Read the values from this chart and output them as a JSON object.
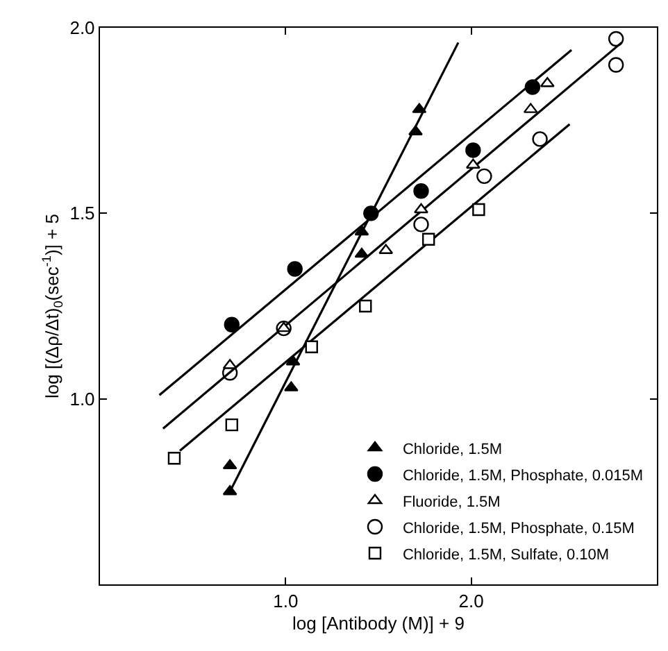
{
  "chart_data": {
    "type": "scatter",
    "xlabel": "log [Antibody (M)] + 9",
    "ylabel": "log [(Δρ/Δt)$_{0}$(sec$^{-1}$)] + 5",
    "xlim": [
      0,
      3
    ],
    "ylim": [
      0.5,
      2.0
    ],
    "xticks": [
      {
        "value": 1,
        "label": "1.0"
      },
      {
        "value": 2,
        "label": "2.0"
      }
    ],
    "yticks": [
      {
        "value": 1,
        "label": "1.0"
      },
      {
        "value": 1.5,
        "label": "1.5"
      },
      {
        "value": 2,
        "label": "2.0"
      }
    ],
    "legend": "bottom right",
    "series": [
      {
        "type": "line",
        "marker": "none",
        "color": "#000000",
        "x": [
          0.7,
          1.93
        ],
        "values": [
          0.75,
          1.96
        ]
      },
      {
        "type": "line",
        "marker": "none",
        "color": "#000000",
        "x": [
          0.32,
          2.54
        ],
        "values": [
          1.01,
          1.94
        ]
      },
      {
        "type": "line",
        "marker": "none",
        "color": "#000000",
        "x": [
          0.34,
          2.81
        ],
        "values": [
          0.92,
          1.96
        ]
      },
      {
        "type": "line",
        "marker": "none",
        "color": "#000000",
        "x": [
          0.43,
          2.53
        ],
        "values": [
          0.86,
          1.74
        ]
      },
      {
        "name": "Chloride, 1.5M",
        "marker": "triangle",
        "color": "#000000",
        "x": [
          1.72,
          1.7,
          1.41,
          1.41,
          1.04,
          1.03,
          0.7,
          0.7
        ],
        "values": [
          1.78,
          1.72,
          1.45,
          1.39,
          1.1,
          1.03,
          0.82,
          0.75
        ]
      },
      {
        "name": "Chloride, 1.5M, Phosphate, 0.015M",
        "marker": "circle",
        "color": "#000000",
        "x": [
          2.33,
          2.01,
          1.73,
          1.46,
          1.05,
          0.71
        ],
        "values": [
          1.84,
          1.67,
          1.56,
          1.5,
          1.35,
          1.2
        ]
      },
      {
        "name": "Fluoride, 1.5M",
        "marker": "triangle",
        "color": "#ffffff",
        "x": [
          2.41,
          2.32,
          2.01,
          1.73,
          1.54,
          0.99,
          0.7
        ],
        "values": [
          1.85,
          1.78,
          1.63,
          1.51,
          1.4,
          1.19,
          1.09
        ]
      },
      {
        "name": "Chloride, 1.5M, Phosphate, 0.15M",
        "marker": "circle",
        "color": "#ffffff",
        "x": [
          2.78,
          2.78,
          2.37,
          2.07,
          1.73,
          0.99,
          0.7
        ],
        "values": [
          1.97,
          1.9,
          1.7,
          1.6,
          1.47,
          1.19,
          1.07
        ]
      },
      {
        "name": "Chloride, 1.5M, Sulfate, 0.10M",
        "marker": "square",
        "color": "#ffffff",
        "x": [
          2.04,
          1.77,
          1.43,
          1.14,
          0.71,
          0.4
        ],
        "values": [
          1.51,
          1.43,
          1.25,
          1.14,
          0.93,
          0.84
        ]
      }
    ]
  }
}
